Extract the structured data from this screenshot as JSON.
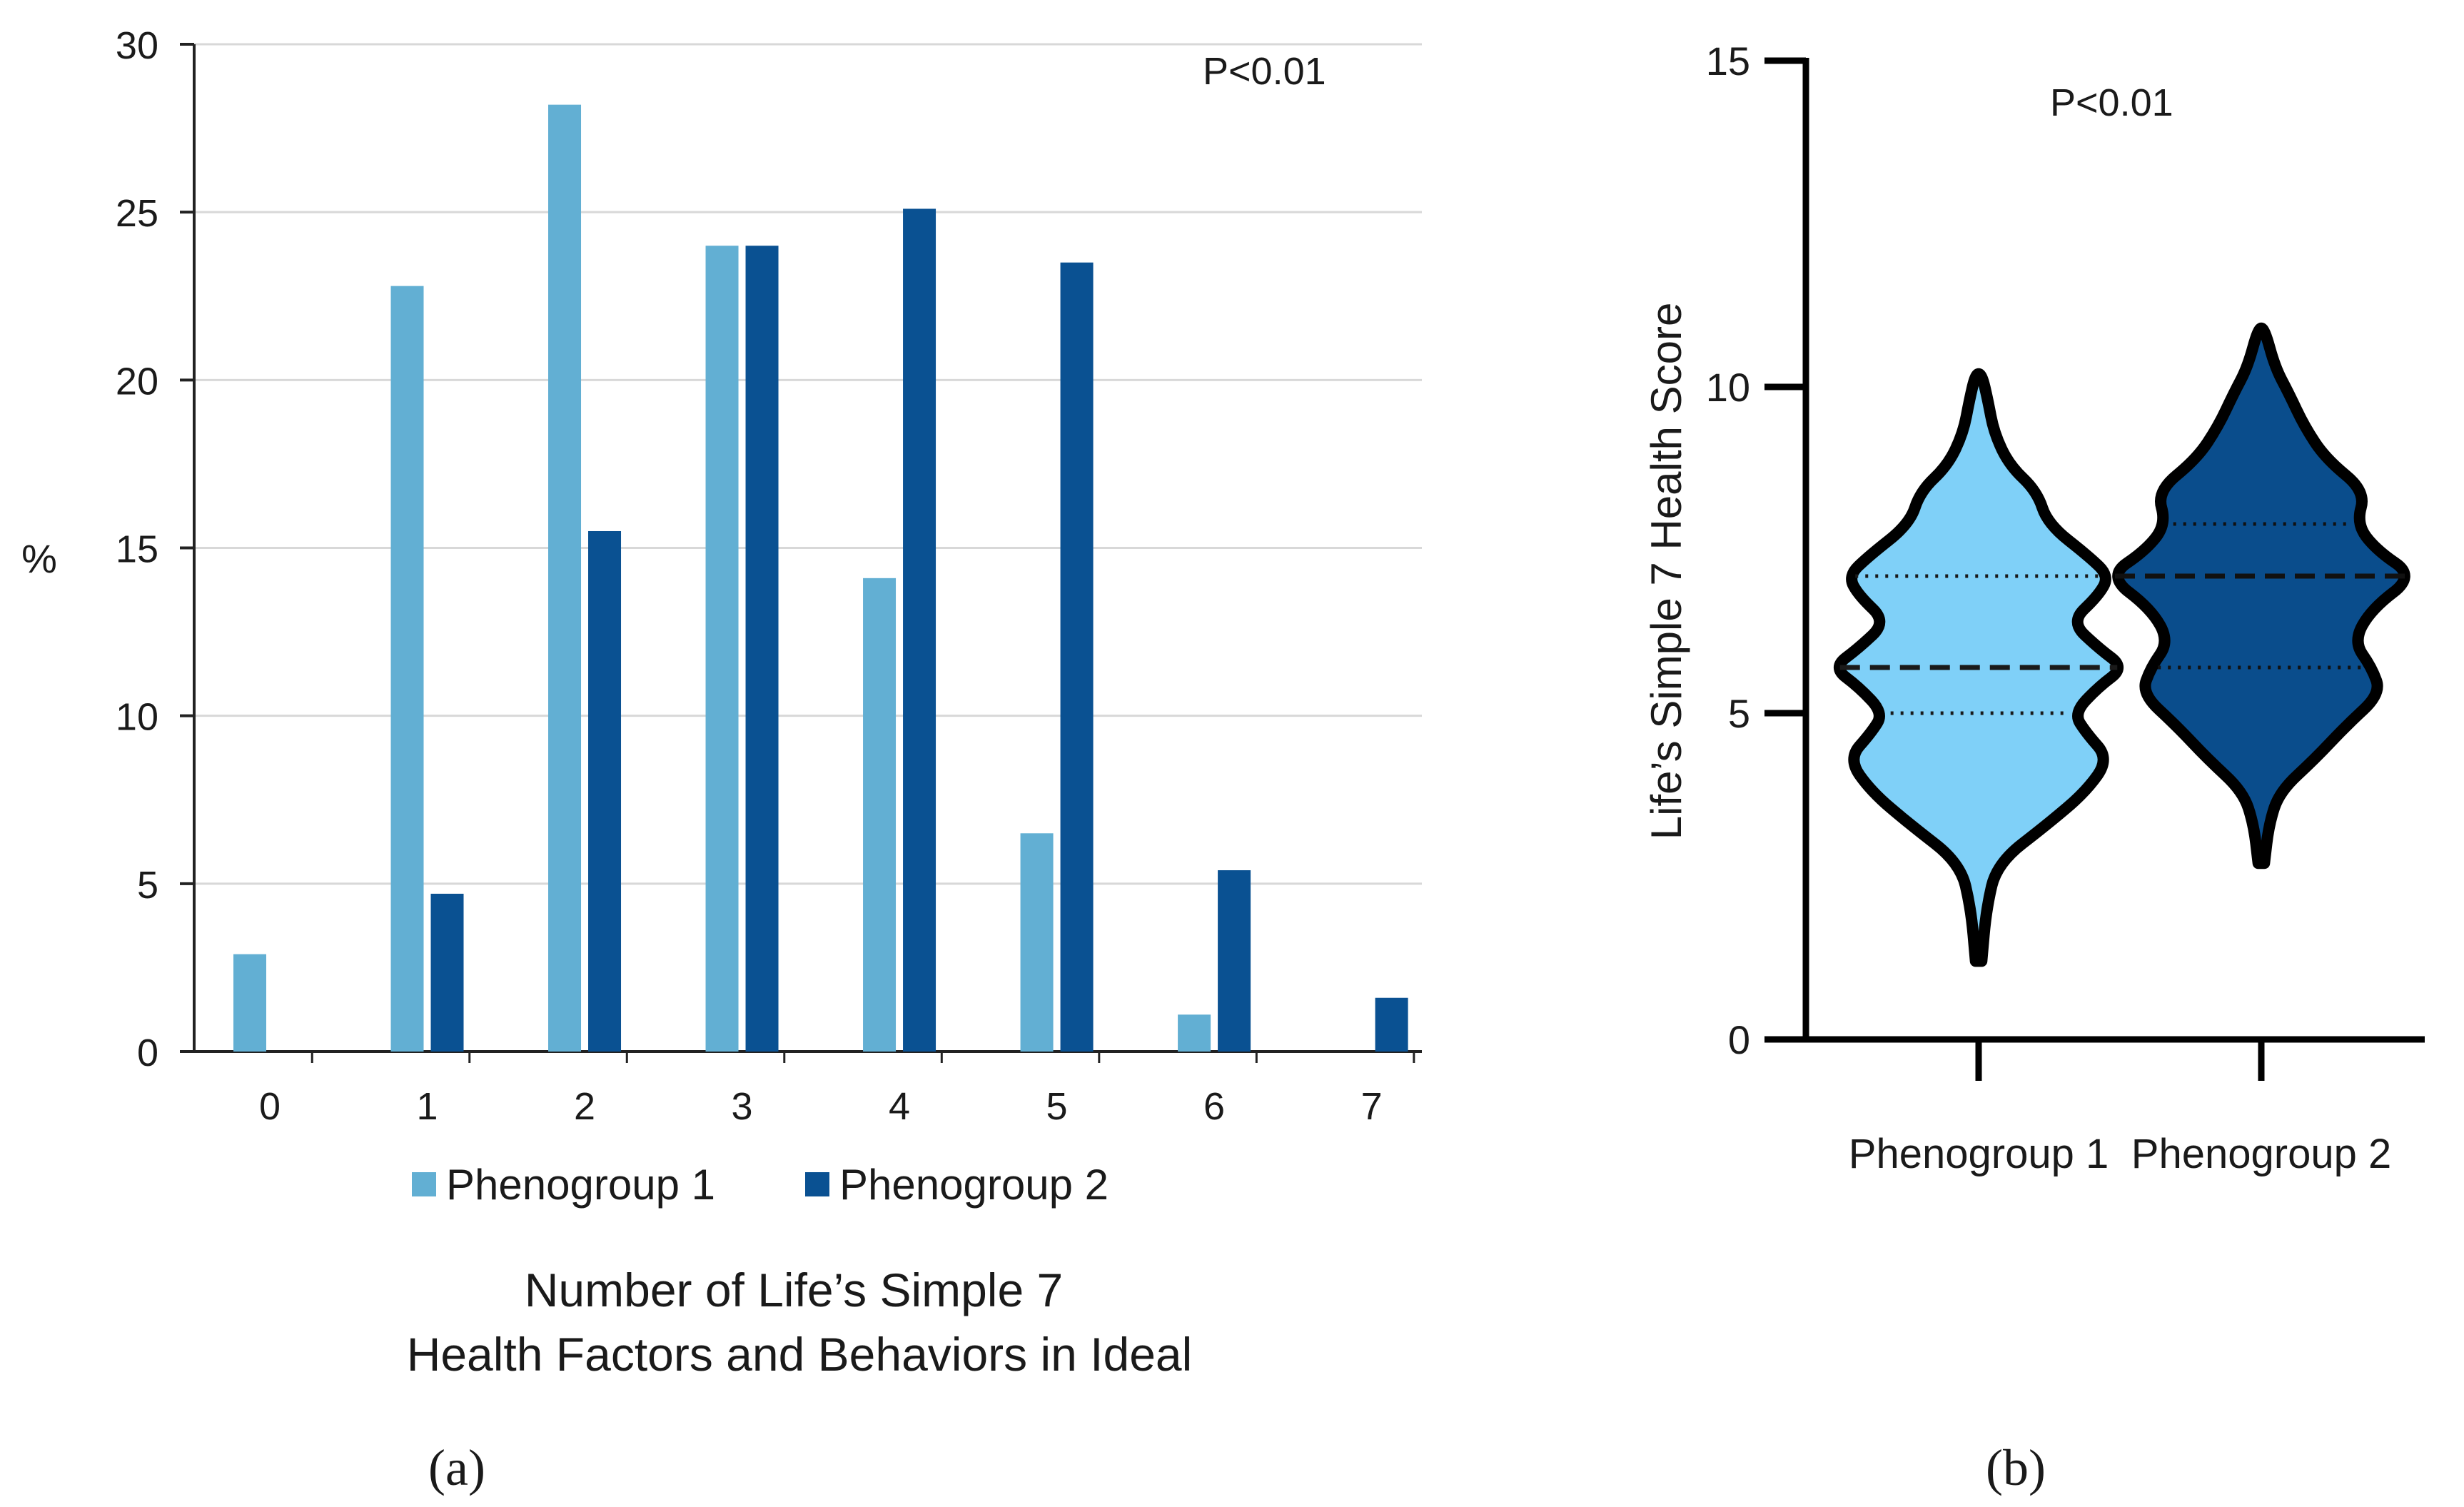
{
  "chart_data": [
    {
      "panel": "(a)",
      "type": "bar",
      "annotation": "P<0.01",
      "ylabel": "%",
      "xlabel_lines": [
        "Number of Life’s Simple 7",
        "Health Factors and Behaviors in Ideal"
      ],
      "ylim": [
        0,
        30
      ],
      "yticks": [
        0,
        5,
        10,
        15,
        20,
        25,
        30
      ],
      "grid": true,
      "legend_position": "bottom",
      "categories": [
        "0",
        "1",
        "2",
        "3",
        "4",
        "5",
        "6",
        "7"
      ],
      "series": [
        {
          "name": "Phenogroup 1",
          "color": "#62afd3",
          "values": [
            2.9,
            22.8,
            28.2,
            24.0,
            14.1,
            6.5,
            1.1,
            0
          ]
        },
        {
          "name": "Phenogroup 2",
          "color": "#0a5192",
          "values": [
            0,
            4.7,
            15.5,
            24.0,
            25.1,
            23.5,
            5.4,
            1.6
          ]
        }
      ]
    },
    {
      "panel": "(b)",
      "type": "violin",
      "annotation": "P<0.01",
      "ylabel": "Life’s Simple 7 Health Score",
      "ylim": [
        0,
        15
      ],
      "yticks": [
        0,
        5,
        10,
        15
      ],
      "grid": false,
      "categories": [
        "Phenogroup 1",
        "Phenogroup 2"
      ],
      "series": [
        {
          "name": "Phenogroup 1",
          "color": "#7fd0f8",
          "min": 1.2,
          "max": 10.2,
          "q1": 5.0,
          "median": 5.7,
          "q3": 7.1,
          "profile": [
            [
              1.2,
              0.02
            ],
            [
              2.0,
              0.05
            ],
            [
              2.7,
              0.12
            ],
            [
              3.3,
              0.45
            ],
            [
              3.8,
              0.7
            ],
            [
              4.3,
              0.85
            ],
            [
              4.7,
              0.7
            ],
            [
              5.0,
              0.62
            ],
            [
              5.4,
              0.78
            ],
            [
              5.7,
              0.95
            ],
            [
              6.0,
              0.78
            ],
            [
              6.4,
              0.6
            ],
            [
              6.8,
              0.78
            ],
            [
              7.1,
              0.85
            ],
            [
              7.4,
              0.72
            ],
            [
              7.9,
              0.45
            ],
            [
              8.4,
              0.38
            ],
            [
              8.8,
              0.2
            ],
            [
              9.3,
              0.1
            ],
            [
              9.8,
              0.06
            ],
            [
              10.2,
              0.02
            ]
          ]
        },
        {
          "name": "Phenogroup 2",
          "color": "#0a4d8c",
          "min": 2.7,
          "max": 10.9,
          "q1": 5.7,
          "median": 7.1,
          "q3": 7.9,
          "profile": [
            [
              2.7,
              0.02
            ],
            [
              3.3,
              0.05
            ],
            [
              3.8,
              0.12
            ],
            [
              4.3,
              0.35
            ],
            [
              4.8,
              0.55
            ],
            [
              5.3,
              0.78
            ],
            [
              5.7,
              0.72
            ],
            [
              6.1,
              0.6
            ],
            [
              6.6,
              0.72
            ],
            [
              7.1,
              1.0
            ],
            [
              7.5,
              0.75
            ],
            [
              7.9,
              0.62
            ],
            [
              8.4,
              0.68
            ],
            [
              8.9,
              0.42
            ],
            [
              9.4,
              0.28
            ],
            [
              9.9,
              0.18
            ],
            [
              10.3,
              0.09
            ],
            [
              10.9,
              0.02
            ]
          ]
        }
      ]
    }
  ]
}
